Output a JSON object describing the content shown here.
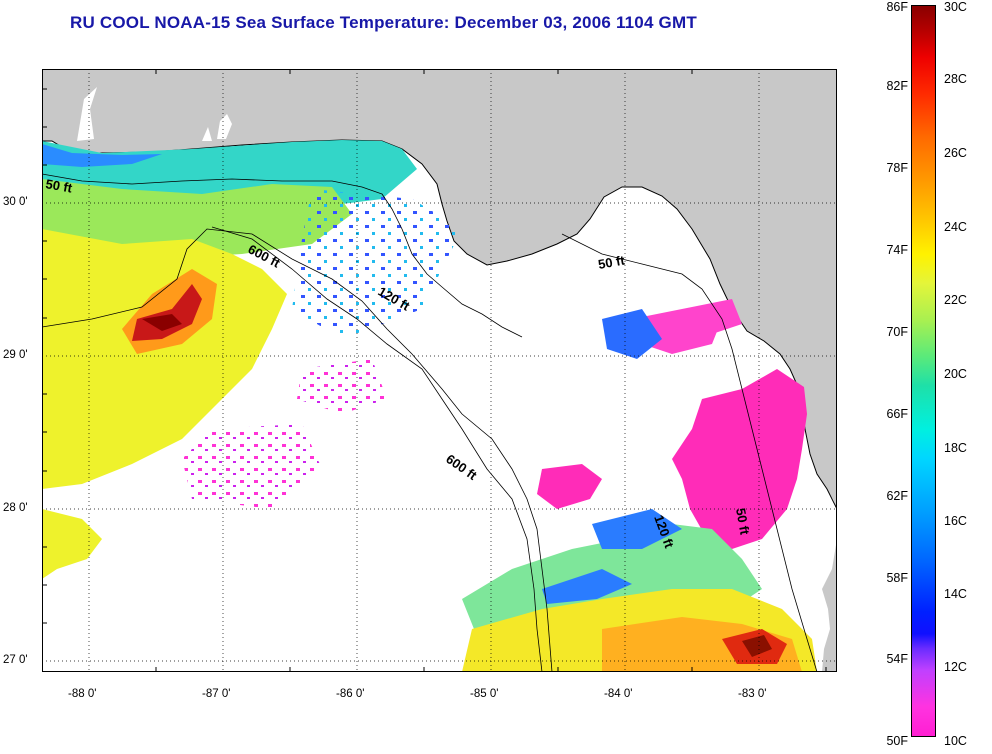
{
  "title": "RU COOL  NOAA-15  Sea Surface Temperature:  December 03, 2006 1104 GMT",
  "lat_labels": [
    "30 0'",
    "29 0'",
    "28 0'",
    "27 0'"
  ],
  "lon_labels": [
    "-88 0'",
    "-87 0'",
    "-86 0'",
    "-85 0'",
    "-84 0'",
    "-83 0'"
  ],
  "contour_labels": {
    "c50_west": "50 ft",
    "c600_north": "600 ft",
    "c120": "120 ft",
    "c50_bigbend": "50 ft",
    "c600_south": "600 ft",
    "c120_south": "120 ft",
    "c50_south": "50 ft"
  },
  "colorbar": {
    "fahrenheit": [
      "86F",
      "82F",
      "78F",
      "74F",
      "70F",
      "66F",
      "62F",
      "58F",
      "54F",
      "50F"
    ],
    "celsius": [
      "30C",
      "28C",
      "26C",
      "24C",
      "22C",
      "20C",
      "18C",
      "16C",
      "14C",
      "12C",
      "10C"
    ]
  },
  "colors": {
    "land": "#c8c8c8",
    "cloud": "#ffffff",
    "title": "#1818a8"
  }
}
